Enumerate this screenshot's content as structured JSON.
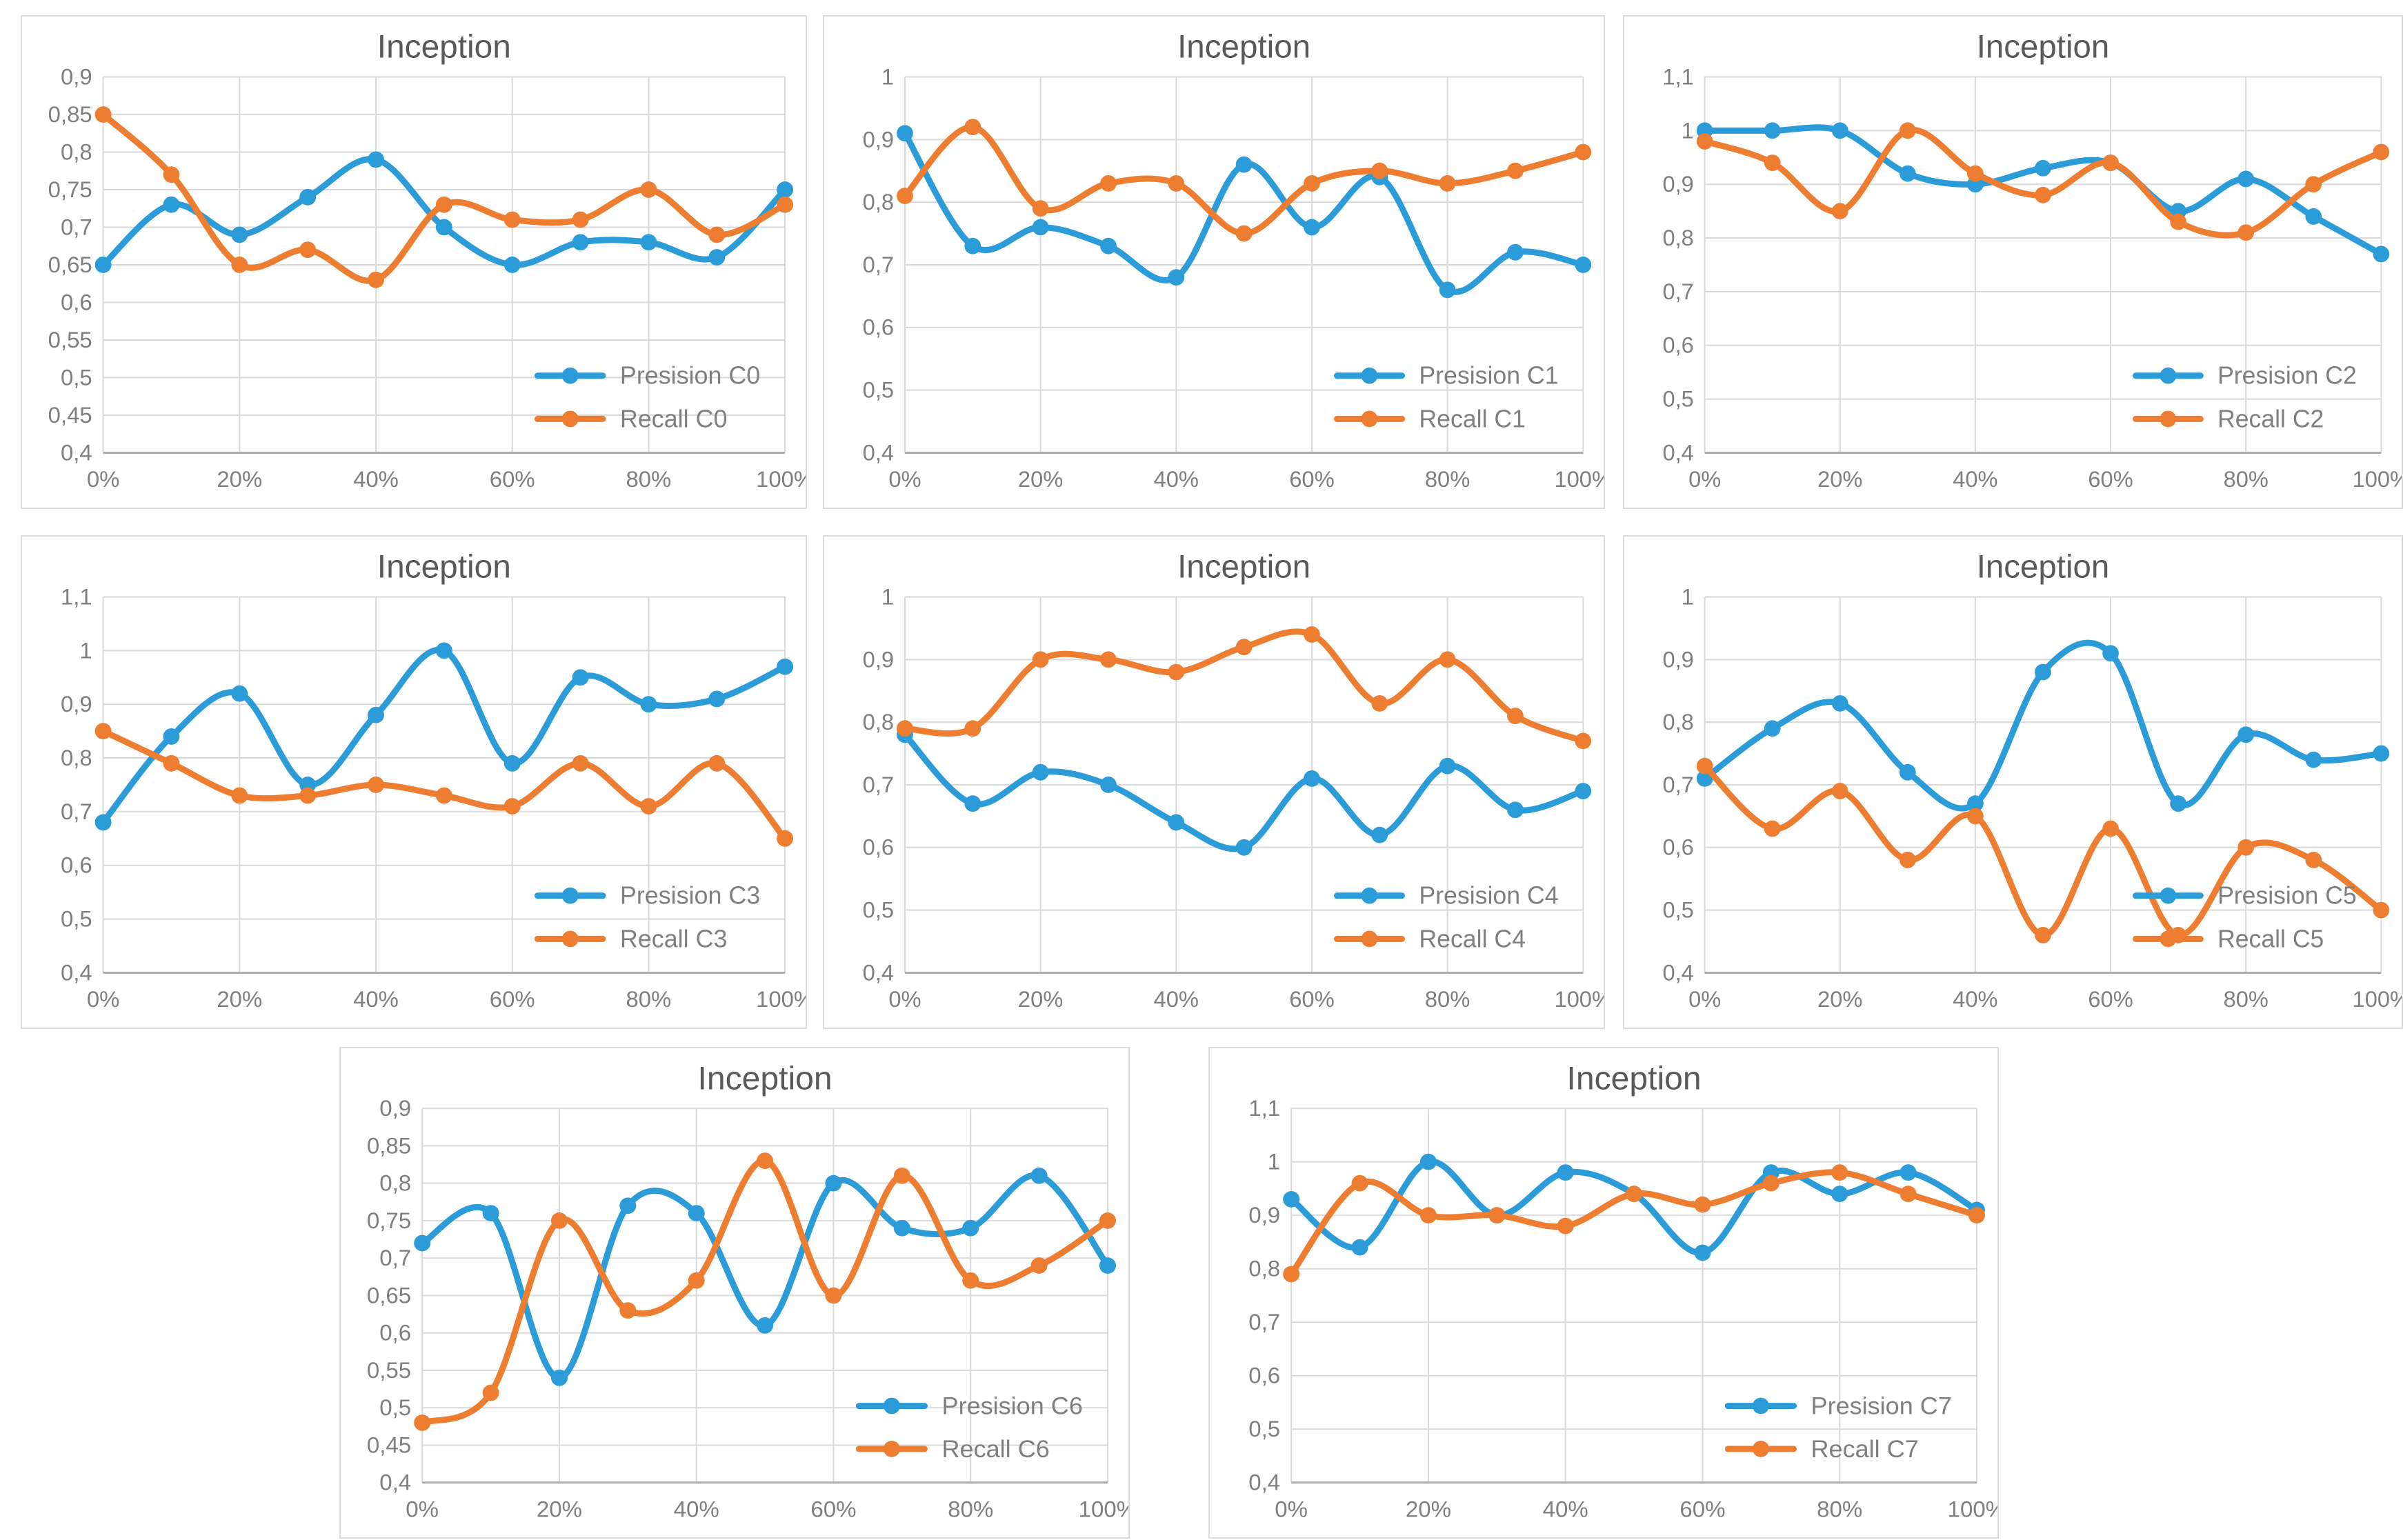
{
  "colors": {
    "precision": "#2b9cd8",
    "recall": "#ed7d31",
    "grid": "#d9d9d9",
    "axis_line": "#ababab",
    "axis_text": "#7f7f7f",
    "title_text": "#595959",
    "legend_text": "#7f7f7f",
    "panel_border": "#dcdcdc",
    "background": "#ffffff"
  },
  "chart_data": [
    {
      "id": "c0",
      "type": "line",
      "title": "Inception",
      "x": [
        0,
        10,
        20,
        30,
        40,
        50,
        60,
        70,
        80,
        90,
        100
      ],
      "x_tick_labels": [
        "0%",
        "20%",
        "40%",
        "60%",
        "80%",
        "100%"
      ],
      "ylim": [
        0.4,
        0.9
      ],
      "y_step": 0.05,
      "grid": true,
      "decimal_style": "comma",
      "legend_position": "inside-bottom-right",
      "series": [
        {
          "name": "Presision C0",
          "color_key": "precision",
          "values": [
            0.65,
            0.73,
            0.69,
            0.74,
            0.79,
            0.7,
            0.65,
            0.68,
            0.68,
            0.66,
            0.75
          ]
        },
        {
          "name": "Recall C0",
          "color_key": "recall",
          "values": [
            0.85,
            0.77,
            0.65,
            0.67,
            0.63,
            0.73,
            0.71,
            0.71,
            0.75,
            0.69,
            0.73
          ]
        }
      ]
    },
    {
      "id": "c1",
      "type": "line",
      "title": "Inception",
      "x": [
        0,
        10,
        20,
        30,
        40,
        50,
        60,
        70,
        80,
        90,
        100
      ],
      "x_tick_labels": [
        "0%",
        "20%",
        "40%",
        "60%",
        "80%",
        "100%"
      ],
      "ylim": [
        0.4,
        1.0
      ],
      "y_step": 0.1,
      "grid": true,
      "decimal_style": "comma",
      "legend_position": "inside-bottom-right",
      "series": [
        {
          "name": "Presision C1",
          "color_key": "precision",
          "values": [
            0.91,
            0.73,
            0.76,
            0.73,
            0.68,
            0.86,
            0.76,
            0.84,
            0.66,
            0.72,
            0.7
          ]
        },
        {
          "name": "Recall C1",
          "color_key": "recall",
          "values": [
            0.81,
            0.92,
            0.79,
            0.83,
            0.83,
            0.75,
            0.83,
            0.85,
            0.83,
            0.85,
            0.88
          ]
        }
      ]
    },
    {
      "id": "c2",
      "type": "line",
      "title": "Inception",
      "x": [
        0,
        10,
        20,
        30,
        40,
        50,
        60,
        70,
        80,
        90,
        100
      ],
      "x_tick_labels": [
        "0%",
        "20%",
        "40%",
        "60%",
        "80%",
        "100%"
      ],
      "ylim": [
        0.4,
        1.1
      ],
      "y_step": 0.1,
      "grid": true,
      "decimal_style": "comma",
      "legend_position": "inside-bottom-right",
      "series": [
        {
          "name": "Presision C2",
          "color_key": "precision",
          "values": [
            1.0,
            1.0,
            1.0,
            0.92,
            0.9,
            0.93,
            0.94,
            0.85,
            0.91,
            0.84,
            0.77
          ]
        },
        {
          "name": "Recall C2",
          "color_key": "recall",
          "values": [
            0.98,
            0.94,
            0.85,
            1.0,
            0.92,
            0.88,
            0.94,
            0.83,
            0.81,
            0.9,
            0.96
          ]
        }
      ]
    },
    {
      "id": "c3",
      "type": "line",
      "title": "Inception",
      "x": [
        0,
        10,
        20,
        30,
        40,
        50,
        60,
        70,
        80,
        90,
        100
      ],
      "x_tick_labels": [
        "0%",
        "20%",
        "40%",
        "60%",
        "80%",
        "100%"
      ],
      "ylim": [
        0.4,
        1.1
      ],
      "y_step": 0.1,
      "grid": true,
      "decimal_style": "comma",
      "legend_position": "inside-bottom-right",
      "series": [
        {
          "name": "Presision C3",
          "color_key": "precision",
          "values": [
            0.68,
            0.84,
            0.92,
            0.75,
            0.88,
            1.0,
            0.79,
            0.95,
            0.9,
            0.91,
            0.97
          ]
        },
        {
          "name": "Recall C3",
          "color_key": "recall",
          "values": [
            0.85,
            0.79,
            0.73,
            0.73,
            0.75,
            0.73,
            0.71,
            0.79,
            0.71,
            0.79,
            0.65
          ]
        }
      ]
    },
    {
      "id": "c4",
      "type": "line",
      "title": "Inception",
      "x": [
        0,
        10,
        20,
        30,
        40,
        50,
        60,
        70,
        80,
        90,
        100
      ],
      "x_tick_labels": [
        "0%",
        "20%",
        "40%",
        "60%",
        "80%",
        "100%"
      ],
      "ylim": [
        0.4,
        1.0
      ],
      "y_step": 0.1,
      "grid": true,
      "decimal_style": "comma",
      "legend_position": "inside-bottom-right",
      "series": [
        {
          "name": "Presision C4",
          "color_key": "precision",
          "values": [
            0.78,
            0.67,
            0.72,
            0.7,
            0.64,
            0.6,
            0.71,
            0.62,
            0.73,
            0.66,
            0.69
          ]
        },
        {
          "name": "Recall C4",
          "color_key": "recall",
          "values": [
            0.79,
            0.79,
            0.9,
            0.9,
            0.88,
            0.92,
            0.94,
            0.83,
            0.9,
            0.81,
            0.77
          ]
        }
      ]
    },
    {
      "id": "c5",
      "type": "line",
      "title": "Inception",
      "x": [
        0,
        10,
        20,
        30,
        40,
        50,
        60,
        70,
        80,
        90,
        100
      ],
      "x_tick_labels": [
        "0%",
        "20%",
        "40%",
        "60%",
        "80%",
        "100%"
      ],
      "ylim": [
        0.4,
        1.0
      ],
      "y_step": 0.1,
      "grid": true,
      "decimal_style": "comma",
      "legend_position": "inside-bottom-right",
      "series": [
        {
          "name": "Presision C5",
          "color_key": "precision",
          "values": [
            0.71,
            0.79,
            0.83,
            0.72,
            0.67,
            0.88,
            0.91,
            0.67,
            0.78,
            0.74,
            0.75
          ]
        },
        {
          "name": "Recall C5",
          "color_key": "recall",
          "values": [
            0.73,
            0.63,
            0.69,
            0.58,
            0.65,
            0.46,
            0.63,
            0.46,
            0.6,
            0.58,
            0.5
          ]
        }
      ]
    },
    {
      "id": "c6",
      "type": "line",
      "title": "Inception",
      "x": [
        0,
        10,
        20,
        30,
        40,
        50,
        60,
        70,
        80,
        90,
        100
      ],
      "x_tick_labels": [
        "0%",
        "20%",
        "40%",
        "60%",
        "80%",
        "100%"
      ],
      "ylim": [
        0.4,
        0.9
      ],
      "y_step": 0.05,
      "grid": true,
      "decimal_style": "comma",
      "legend_position": "inside-bottom-right",
      "series": [
        {
          "name": "Presision C6",
          "color_key": "precision",
          "values": [
            0.72,
            0.76,
            0.54,
            0.77,
            0.76,
            0.61,
            0.8,
            0.74,
            0.74,
            0.81,
            0.69
          ]
        },
        {
          "name": "Recall C6",
          "color_key": "recall",
          "values": [
            0.48,
            0.52,
            0.75,
            0.63,
            0.67,
            0.83,
            0.65,
            0.81,
            0.67,
            0.69,
            0.75
          ]
        }
      ]
    },
    {
      "id": "c7",
      "type": "line",
      "title": "Inception",
      "x": [
        0,
        10,
        20,
        30,
        40,
        50,
        60,
        70,
        80,
        90,
        100
      ],
      "x_tick_labels": [
        "0%",
        "20%",
        "40%",
        "60%",
        "80%",
        "100%"
      ],
      "ylim": [
        0.4,
        1.1
      ],
      "y_step": 0.1,
      "grid": true,
      "decimal_style": "comma",
      "legend_position": "inside-bottom-right",
      "series": [
        {
          "name": "Presision C7",
          "color_key": "precision",
          "values": [
            0.93,
            0.84,
            1.0,
            0.9,
            0.98,
            0.94,
            0.83,
            0.98,
            0.94,
            0.98,
            0.91
          ]
        },
        {
          "name": "Recall C7",
          "color_key": "recall",
          "values": [
            0.79,
            0.96,
            0.9,
            0.9,
            0.88,
            0.94,
            0.92,
            0.96,
            0.98,
            0.94,
            0.9
          ]
        }
      ]
    }
  ]
}
